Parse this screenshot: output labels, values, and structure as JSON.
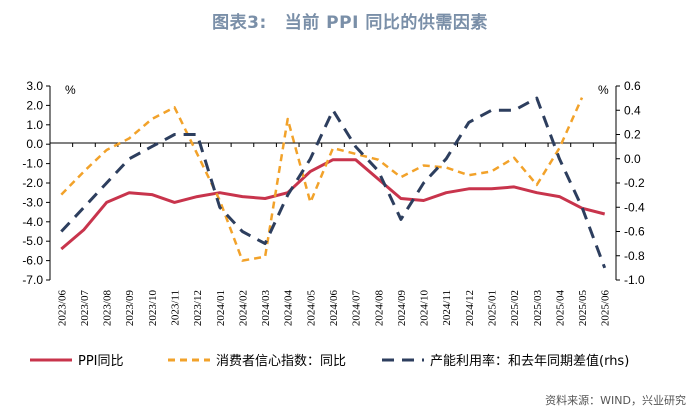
{
  "header": {
    "figure_label": "图表3:",
    "title": "当前 PPI 同比的供需因素"
  },
  "colors": {
    "ppi": "#c8344c",
    "consumer": "#f2a22a",
    "capacity": "#2d3e5e",
    "title": "#7a8fa8"
  },
  "chart_data": {
    "type": "line",
    "title": "当前 PPI 同比的供需因素",
    "categories": [
      "2023/06",
      "2023/07",
      "2023/08",
      "2023/09",
      "2023/10",
      "2023/11",
      "2023/12",
      "2024/01",
      "2024/02",
      "2024/03",
      "2024/04",
      "2024/05",
      "2024/06",
      "2024/07",
      "2024/08",
      "2024/09",
      "2024/10",
      "2024/11",
      "2024/12",
      "2025/01",
      "2025/02",
      "2025/03",
      "2025/04",
      "2025/05",
      "2025/06"
    ],
    "left_axis": {
      "unit": "%",
      "ylim": [
        -7.0,
        3.0
      ],
      "ticks": [
        "3.0",
        "2.0",
        "1.0",
        "0.0",
        "-1.0",
        "-2.0",
        "-3.0",
        "-4.0",
        "-5.0",
        "-6.0",
        "-7.0"
      ]
    },
    "right_axis": {
      "unit": "%",
      "ylim": [
        -1.0,
        0.6
      ],
      "ticks": [
        "0.6",
        "0.4",
        "0.2",
        "0.0",
        "-0.2",
        "-0.4",
        "-0.6",
        "-0.8",
        "-1.0"
      ]
    },
    "series": [
      {
        "name": "PPI同比",
        "axis": "left",
        "style": "solid",
        "values": [
          -5.4,
          -4.4,
          -3.0,
          -2.5,
          -2.6,
          -3.0,
          -2.7,
          -2.5,
          -2.7,
          -2.8,
          -2.5,
          -1.4,
          -0.8,
          -0.8,
          -1.8,
          -2.8,
          -2.9,
          -2.5,
          -2.3,
          -2.3,
          -2.2,
          -2.5,
          -2.7,
          -3.3,
          -3.6
        ]
      },
      {
        "name": "消费者信心指数：同比",
        "axis": "left",
        "style": "dashed",
        "values": [
          -2.6,
          -1.4,
          -0.3,
          0.3,
          1.3,
          1.9,
          -0.5,
          -2.9,
          -6.0,
          -5.8,
          1.3,
          -3.0,
          -0.2,
          -0.5,
          -0.8,
          -1.7,
          -1.1,
          -1.2,
          -1.6,
          -1.4,
          -0.7,
          -2.1,
          -0.2,
          2.4,
          null
        ]
      },
      {
        "name": "产能利用率：和去年同期差值(rhs)",
        "axis": "right",
        "style": "dashed",
        "values": [
          -0.6,
          -0.4,
          -0.2,
          0.0,
          0.1,
          0.2,
          0.2,
          -0.4,
          -0.6,
          -0.7,
          -0.3,
          0.0,
          0.4,
          0.1,
          -0.1,
          -0.5,
          -0.2,
          0.0,
          0.3,
          0.4,
          0.4,
          0.5,
          0.0,
          -0.4,
          -0.9
        ]
      }
    ]
  },
  "legend": {
    "items": [
      "PPI同比",
      "消费者信心指数：同比",
      "产能利用率：和去年同期差值(rhs)"
    ]
  },
  "source": "资料来源：WIND，兴业研究"
}
